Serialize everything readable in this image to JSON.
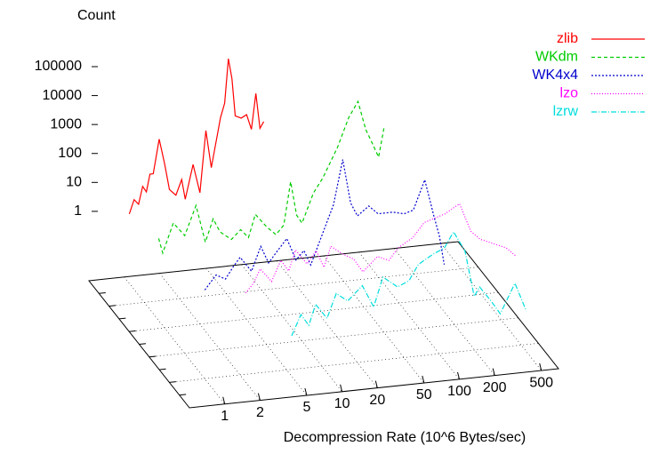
{
  "chart_data": {
    "type": "line3d",
    "title": "Count",
    "xlabel": "Decompression Rate (10^6 Bytes/sec)",
    "xlog": true,
    "zlog": true,
    "grid": true,
    "legend": "top-right",
    "xlim": [
      0.5,
      700
    ],
    "xticks": [
      1,
      2,
      5,
      10,
      20,
      50,
      100,
      200,
      500
    ],
    "zlim": [
      0.004,
      100000
    ],
    "zticks": [
      1,
      10,
      100,
      1000,
      10000,
      100000
    ],
    "series": [
      {
        "name": "zlib",
        "color": "#ff0000",
        "dash": "none",
        "x": [
          1,
          1.1,
          1.2,
          1.3,
          1.4,
          1.5,
          1.6,
          1.8,
          2,
          2.2,
          2.5,
          2.8,
          3,
          3.5,
          4,
          4.5,
          5,
          6,
          6.5,
          7,
          7.5,
          8,
          9,
          10,
          11,
          12,
          13,
          14
        ],
        "values": [
          1,
          3,
          2,
          8,
          5,
          20,
          20,
          300,
          40,
          5,
          3,
          10,
          2,
          30,
          3,
          400,
          20,
          1000,
          3000,
          100000,
          20000,
          1000,
          800,
          1000,
          300,
          5000,
          300,
          500
        ]
      },
      {
        "name": "WKdm",
        "color": "#00cc00",
        "dash": "4,3",
        "x": [
          1.2,
          1.3,
          1.6,
          2,
          2.5,
          3,
          3.5,
          4,
          5,
          6,
          7,
          8,
          10,
          12,
          14,
          16,
          18,
          20,
          25,
          30,
          40,
          50,
          60,
          70,
          80,
          90,
          100
        ],
        "values": [
          1,
          0.3,
          3,
          1,
          10,
          0.5,
          3,
          1,
          0.5,
          1,
          0.5,
          3,
          1,
          0.5,
          1,
          30,
          2,
          1,
          10,
          30,
          300,
          3000,
          10000,
          1000,
          300,
          100,
          1000
        ]
      },
      {
        "name": "WK4x4",
        "color": "#0000cc",
        "dash": "2,2",
        "x": [
          2,
          2.5,
          3,
          3.5,
          4,
          5,
          6,
          7,
          8,
          10,
          12,
          14,
          16,
          18,
          20,
          25,
          30,
          35,
          40,
          50,
          60,
          80,
          100,
          120,
          150,
          180,
          200,
          220
        ],
        "values": [
          0.1,
          0.3,
          0.2,
          0.5,
          1,
          0.3,
          2,
          0.5,
          1,
          3,
          0.5,
          1,
          0.3,
          1,
          3,
          30,
          1000,
          30,
          10,
          20,
          10,
          10,
          8,
          10,
          100,
          5,
          1,
          0.1
        ]
      },
      {
        "name": "lzo",
        "color": "#ff00ff",
        "dash": "1,2",
        "x": [
          3,
          3.5,
          4,
          5,
          6,
          7,
          8,
          10,
          12,
          14,
          16,
          20,
          25,
          30,
          40,
          50,
          60,
          80,
          100,
          150,
          200,
          250,
          300,
          400,
          500,
          600
        ],
        "values": [
          0.5,
          1,
          3,
          1,
          5,
          2,
          10,
          3,
          8,
          2,
          10,
          5,
          3,
          1,
          3,
          2,
          5,
          10,
          30,
          50,
          100,
          10,
          5,
          3,
          2,
          1
        ]
      },
      {
        "name": "lzrw",
        "color": "#00dddd",
        "dash": "6,2,1,2",
        "x": [
          5,
          6,
          7,
          8,
          10,
          12,
          15,
          20,
          25,
          30,
          40,
          50,
          60,
          80,
          100,
          120,
          150,
          180,
          200,
          250,
          300,
          400,
          500
        ],
        "values": [
          0.1,
          0.5,
          0.2,
          1,
          0.3,
          2,
          1,
          3,
          0.5,
          5,
          2,
          3,
          10,
          20,
          30,
          100,
          20,
          0.5,
          1,
          0.3,
          0.1,
          1,
          0.1
        ]
      }
    ]
  }
}
